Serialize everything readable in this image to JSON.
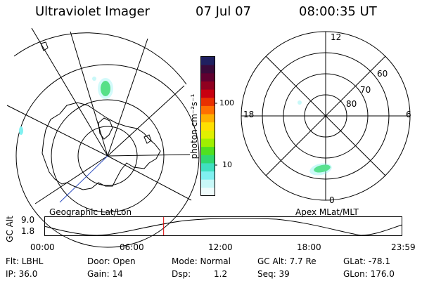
{
  "header": {
    "instrument": "Ultraviolet Imager",
    "date": "07 Jul 07",
    "time": "08:00:35 UT"
  },
  "panels": {
    "left_label": "Geographic Lat/Lon",
    "right_label": "Apex MLat/MLT"
  },
  "colorbar": {
    "unit_label": "photon cm⁻²s⁻¹",
    "tick_100": "100",
    "tick_10": "10",
    "colors": [
      "#202060",
      "#3a0a3a",
      "#600030",
      "#900020",
      "#c80010",
      "#e83000",
      "#ff7000",
      "#ffb000",
      "#ffe000",
      "#e0f000",
      "#a0f000",
      "#50e020",
      "#30d870",
      "#40e0c0",
      "#80f0f0",
      "#c8f8f8",
      "#f0fcfc"
    ]
  },
  "polar": {
    "mlt_top": "12",
    "mlt_left": "18",
    "mlt_right": "6",
    "mlt_bottom": "0",
    "lat_60": "60",
    "lat_70": "70",
    "lat_80": "80"
  },
  "altitude_plot": {
    "axis_label": "GC Alt",
    "y_top": "9.0",
    "y_bottom": "1.8",
    "x_ticks": [
      "00:00",
      "06:00",
      "12:00",
      "18:00",
      "23:59"
    ],
    "current_time_fraction": 0.334
  },
  "footer": {
    "flt": "Flt: LBHL",
    "ip": "IP: 36.0",
    "door": "Door: Open",
    "gain": "Gain: 14",
    "mode": "Mode: Normal",
    "dsp_label": "Dsp:",
    "dsp_value": "1.2",
    "gc_alt": "GC Alt: 7.7 Re",
    "seq": "Seq: 39",
    "glat": "GLat: -78.1",
    "glon": "GLon: 176.0"
  }
}
